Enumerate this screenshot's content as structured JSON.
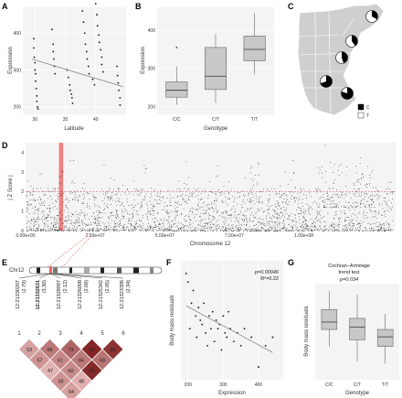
{
  "panels": [
    "A",
    "B",
    "C",
    "D",
    "E",
    "F",
    "G"
  ],
  "chart_data": [
    {
      "panel": "A",
      "type": "scatter",
      "xlabel": "Latitude",
      "ylabel": "Expression",
      "xlim": [
        28,
        45
      ],
      "ylim": [
        180,
        470
      ],
      "xticks": [
        30,
        35,
        40
      ],
      "yticks": [
        200,
        300,
        400
      ],
      "x": [
        29.8,
        29.8,
        29.9,
        30,
        30,
        30.1,
        30.1,
        30.2,
        30.3,
        30.3,
        30.4,
        30.5,
        32.8,
        33,
        33,
        33.1,
        33.2,
        33.3,
        35.3,
        35.5,
        35.7,
        35.8,
        36,
        36.1,
        36.2,
        37.8,
        38,
        38.2,
        38.3,
        38.5,
        38.6,
        38.8,
        38.9,
        39.5,
        39.8,
        40,
        40.2,
        40.3,
        40.5,
        40.6,
        40.8,
        41,
        41,
        41.2,
        43.5,
        43.6,
        43.7,
        43.8,
        44,
        44
      ],
      "y": [
        385,
        360,
        335,
        320,
        300,
        290,
        270,
        250,
        230,
        215,
        200,
        195,
        410,
        370,
        350,
        330,
        310,
        290,
        300,
        280,
        260,
        245,
        235,
        225,
        210,
        460,
        430,
        400,
        370,
        350,
        330,
        310,
        290,
        275,
        260,
        480,
        450,
        420,
        395,
        375,
        355,
        335,
        315,
        295,
        310,
        285,
        265,
        245,
        225,
        205
      ],
      "trendline": {
        "x": [
          29.5,
          44.5
        ],
        "y": [
          330,
          255
        ]
      }
    },
    {
      "panel": "B",
      "type": "box",
      "xlabel": "Genotype",
      "ylabel": "Expression",
      "categories": [
        "C/C",
        "C/T",
        "T/T"
      ],
      "ylim": [
        180,
        460
      ],
      "yticks": [
        200,
        300,
        400
      ],
      "boxes": [
        {
          "min": 205,
          "q1": 225,
          "median": 243,
          "q3": 265,
          "max": 305,
          "outliers": [
            355
          ]
        },
        {
          "min": 210,
          "q1": 245,
          "median": 280,
          "q3": 355,
          "max": 390,
          "outliers": []
        },
        {
          "min": 285,
          "q1": 320,
          "median": 350,
          "q3": 385,
          "max": 445,
          "outliers": []
        }
      ]
    },
    {
      "panel": "C",
      "type": "map-pie",
      "legend": [
        {
          "label": "C",
          "color": "#000000"
        },
        {
          "label": "T",
          "color": "#ffffff"
        }
      ],
      "pies": [
        {
          "cx": 407,
          "cy": 18,
          "c_fraction": 0.33
        },
        {
          "cx": 385,
          "cy": 45,
          "c_fraction": 0.4
        },
        {
          "cx": 374,
          "cy": 63,
          "c_fraction": 0.45
        },
        {
          "cx": 357,
          "cy": 89,
          "c_fraction": 0.7
        },
        {
          "cx": 380,
          "cy": 102,
          "c_fraction": 0.8
        }
      ]
    },
    {
      "panel": "D",
      "type": "manhattan",
      "xlabel": "Chromosome 12",
      "ylabel": "| Z Score |",
      "ylim": [
        0,
        4.5
      ],
      "yticks": [
        0,
        1,
        2,
        3,
        4
      ],
      "threshold": 2.0,
      "xtick_labels": [
        "0.00e+00",
        "2.50e+07",
        "5.00e+07",
        "7.50e+07",
        "1.00e+08"
      ],
      "xtick_values": [
        0,
        25000000,
        50000000,
        75000000,
        100000000
      ],
      "highlight_region": [
        12000000,
        13500000
      ]
    },
    {
      "panel": "E",
      "type": "ld-heatmap",
      "chromosome": "Chr12",
      "snps": [
        {
          "index": "1",
          "id": "12:21330207",
          "z": "(2.79)",
          "bold": false
        },
        {
          "index": "2",
          "id": "12:21332631",
          "z": "(3.30)",
          "bold": true
        },
        {
          "index": "3",
          "id": "12:21328997",
          "z": "(2.12)",
          "bold": false
        },
        {
          "index": "4",
          "id": "12:21326008",
          "z": "(2.08)",
          "bold": false
        },
        {
          "index": "5",
          "id": "12:21325342",
          "z": "(2.05)",
          "bold": false
        },
        {
          "index": "6",
          "id": "12:21323396",
          "z": "(2.34)",
          "bold": false
        }
      ],
      "ld_rows": [
        [
          53,
          66,
          73,
          94,
          90
        ],
        [
          57,
          61,
          66,
          68
        ],
        [
          47,
          60,
          93
        ],
        [
          58,
          48
        ],
        [
          54
        ]
      ]
    },
    {
      "panel": "F",
      "type": "scatter",
      "xlabel": "Expression",
      "ylabel": "Body mass residuals",
      "annotation": [
        "p=0.00046",
        "R²=0.22"
      ],
      "xlim": [
        180,
        470
      ],
      "ylim": [
        -7,
        7
      ],
      "xticks": [
        200,
        300,
        400
      ],
      "x": [
        195,
        200,
        205,
        210,
        215,
        222,
        225,
        230,
        235,
        240,
        245,
        250,
        255,
        260,
        265,
        270,
        275,
        280,
        285,
        290,
        295,
        300,
        305,
        310,
        315,
        320,
        330,
        340,
        350,
        360,
        380,
        400,
        420,
        440
      ],
      "y": [
        5.5,
        4.5,
        -1,
        2,
        3.5,
        0.5,
        -2,
        1.5,
        0,
        -0.5,
        2,
        -1.5,
        -3,
        0.5,
        -1,
        1,
        -2.5,
        0,
        -1,
        -0.5,
        -3.5,
        0.5,
        -1.5,
        -2,
        1,
        -1,
        -2.5,
        -1.5,
        -3,
        -1,
        -2,
        -5.5,
        -3,
        -2
      ],
      "trendline": {
        "x": [
          195,
          440
        ],
        "y": [
          1.7,
          -3.8
        ]
      }
    },
    {
      "panel": "G",
      "type": "box",
      "title": "Cochran–Armitage\ntrend test",
      "annotation": "p=0.034",
      "xlabel": "Genotype",
      "ylabel": "Body mass residuals",
      "categories": [
        "C/C",
        "C/T",
        "T/T"
      ],
      "ylim": [
        -7,
        6
      ],
      "boxes": [
        {
          "min": -2.5,
          "q1": -0.2,
          "median": 0.8,
          "q3": 2.5,
          "max": 5.0,
          "outliers": []
        },
        {
          "min": -4.5,
          "q1": -1.6,
          "median": 0.1,
          "q3": 1.3,
          "max": 4.5,
          "outliers": []
        },
        {
          "min": -4.8,
          "q1": -2.5,
          "median": -1.2,
          "q3": -0.2,
          "max": 1.9,
          "outliers": []
        }
      ]
    }
  ]
}
